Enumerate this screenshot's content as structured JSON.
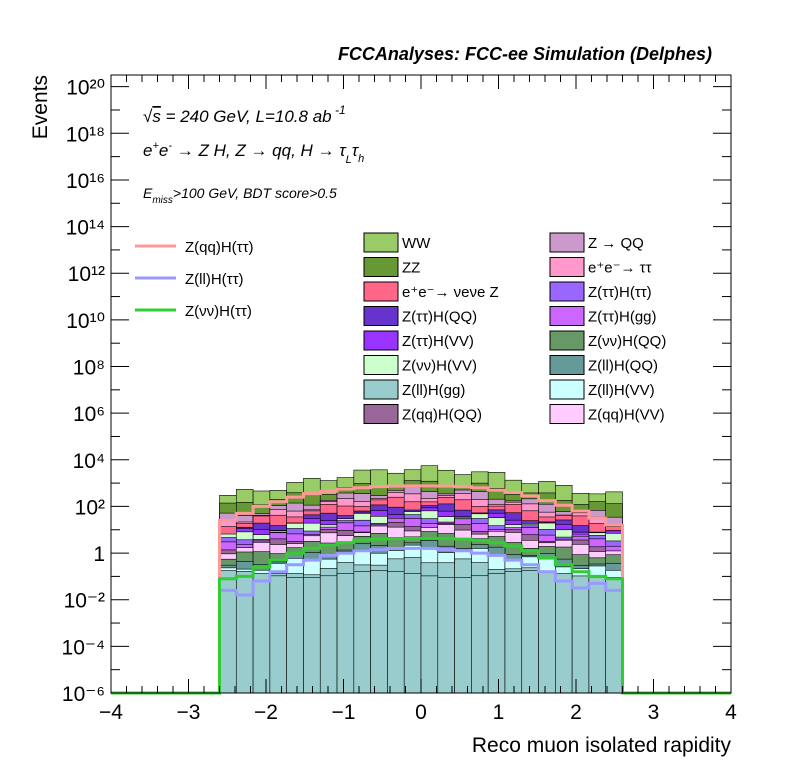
{
  "header": {
    "title": "FCCAnalyses: FCC-ee Simulation (Delphes)"
  },
  "annotations": {
    "line1_energy": "√s = 240 GeV, L=10.8 ab⁻¹",
    "line2_process": "e⁺e⁻ → Z H, Z → qq, H → τLτh",
    "line3_cuts": "Emiss>100 GeV, BDT score>0.5"
  },
  "chart_data": {
    "type": "histogram",
    "title": "FCCAnalyses: FCC-ee Simulation (Delphes)",
    "xlabel": "Reco muon isolated rapidity",
    "ylabel": "Events",
    "xlim": [
      -4,
      4
    ],
    "ylim_log10": [
      -6,
      20.5
    ],
    "yscale": "log",
    "x_ticks": [
      "−4",
      "−3",
      "−2",
      "−1",
      "0",
      "1",
      "2",
      "3",
      "4"
    ],
    "y_ticks": [
      "10⁻⁶",
      "10⁻⁴",
      "10⁻²",
      "1",
      "10²",
      "10⁴",
      "10⁶",
      "10⁸",
      "10¹⁰",
      "10¹²",
      "10¹⁴",
      "10¹⁶",
      "10¹⁸",
      "10²⁰"
    ],
    "bin_edges_range": [
      -2.6,
      2.6
    ],
    "n_bins": 24,
    "stack_totals_log10": [
      [
        1.9,
        2.2,
        2.5,
        2.8,
        3.0,
        3.2,
        3.35,
        3.45,
        3.55,
        3.6,
        3.62,
        3.62,
        3.62,
        3.6,
        3.55,
        3.5,
        3.4,
        3.3,
        3.15,
        2.95,
        2.75,
        2.5,
        2.2,
        1.9
      ]
    ],
    "legend_stack": [
      {
        "name": "WW",
        "color": "#99cc66",
        "level_log10": [
          2.8,
          3.6,
          2.0
        ]
      },
      {
        "name": "ZZ",
        "color": "#669933",
        "level_log10": [
          2.3,
          3.0,
          1.6
        ]
      },
      {
        "name": "e⁺e⁻→ νeνe Z",
        "color": "#ff6688",
        "level_log10": [
          1.5,
          2.3,
          0.8
        ]
      },
      {
        "name": "Z(ττ)H(QQ)",
        "color": "#6633cc",
        "level_log10": [
          1.2,
          2.0,
          0.5
        ]
      },
      {
        "name": "Z(ττ)H(VV)",
        "color": "#9933ff",
        "level_log10": [
          1.0,
          1.8,
          0.4
        ]
      },
      {
        "name": "Z(νν)H(VV)",
        "color": "#ccffcc",
        "level_log10": [
          0.9,
          1.7,
          0.3
        ]
      },
      {
        "name": "Z(ll)H(gg)",
        "color": "#99cccc",
        "level_log10": [
          -1.0,
          -0.3,
          -1.8
        ]
      },
      {
        "name": "Z(qq)H(QQ)",
        "color": "#996699",
        "level_log10": [
          0.4,
          1.2,
          -0.2
        ]
      },
      {
        "name": "Z → QQ",
        "color": "#cc99cc",
        "level_log10": [
          1.8,
          2.7,
          1.1
        ]
      },
      {
        "name": "e⁺e⁻→ ττ",
        "color": "#ff99cc",
        "level_log10": [
          1.6,
          2.5,
          0.9
        ]
      },
      {
        "name": "Z(ττ)H(ττ)",
        "color": "#9966ff",
        "level_log10": [
          0.7,
          1.5,
          0.1
        ]
      },
      {
        "name": "Z(ττ)H(gg)",
        "color": "#cc66ff",
        "level_log10": [
          0.6,
          1.4,
          0.0
        ]
      },
      {
        "name": "Z(νν)H(QQ)",
        "color": "#669966",
        "level_log10": [
          0.0,
          0.8,
          -0.6
        ]
      },
      {
        "name": "Z(ll)H(QQ)",
        "color": "#669999",
        "level_log10": [
          -0.4,
          0.4,
          -1.0
        ]
      },
      {
        "name": "Z(ll)H(VV)",
        "color": "#ccffff",
        "level_log10": [
          -0.6,
          0.2,
          -1.2
        ]
      },
      {
        "name": "Z(qq)H(VV)",
        "color": "#ffccff",
        "level_log10": [
          0.3,
          1.1,
          -0.3
        ]
      }
    ],
    "signal_lines": [
      {
        "name": "Z(qq)H(ττ)",
        "color": "#ff9999",
        "values_log10": [
          1.4,
          1.7,
          2.0,
          2.2,
          2.4,
          2.55,
          2.65,
          2.75,
          2.8,
          2.85,
          2.87,
          2.88,
          2.88,
          2.87,
          2.85,
          2.8,
          2.7,
          2.6,
          2.45,
          2.25,
          2.05,
          1.8,
          1.5,
          1.2
        ]
      },
      {
        "name": "Z(ll)H(ττ)",
        "color": "#9999ff",
        "values_log10": [
          -1.6,
          -1.8,
          -1.2,
          -0.8,
          -0.5,
          -0.3,
          -0.1,
          0.0,
          0.1,
          0.15,
          0.2,
          0.2,
          0.2,
          0.15,
          0.1,
          0.0,
          -0.1,
          -0.3,
          -0.5,
          -0.8,
          -1.2,
          -1.5,
          -1.3,
          -1.6
        ]
      },
      {
        "name": "Z(νν)H(ττ)",
        "color": "#33cc33",
        "values_log10": [
          -1.1,
          -1.0,
          -0.6,
          -0.3,
          0.0,
          0.2,
          0.35,
          0.45,
          0.55,
          0.6,
          0.62,
          0.63,
          0.63,
          0.62,
          0.6,
          0.55,
          0.45,
          0.3,
          0.1,
          -0.2,
          -0.5,
          -0.8,
          -1.0,
          -1.1
        ]
      }
    ]
  }
}
